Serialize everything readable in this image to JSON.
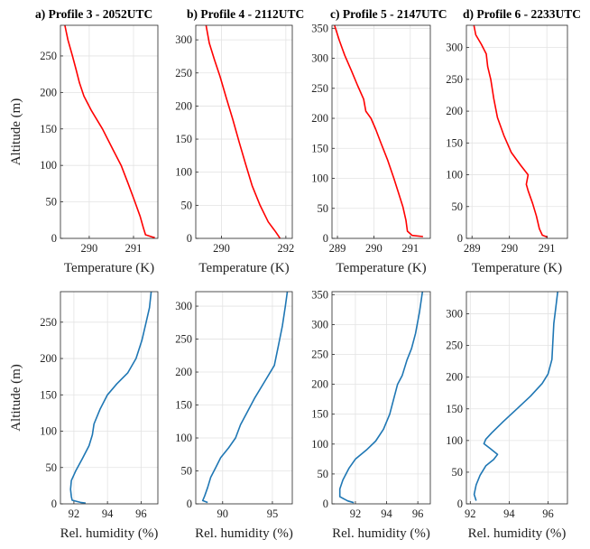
{
  "chart_data": [
    {
      "type": "line",
      "title": "a) Profile 3 - 2052UTC",
      "xlabel": "Temperature (K)",
      "ylabel": "Altitude (m)",
      "xlim": [
        289.35,
        291.55
      ],
      "ylim": [
        0,
        292
      ],
      "xticks": [
        290,
        291
      ],
      "yticks": [
        0,
        50,
        100,
        150,
        200,
        250
      ],
      "grid": true,
      "series": [
        {
          "color": "#ff0000",
          "points": [
            [
              289.45,
              292
            ],
            [
              289.52,
              272
            ],
            [
              289.62,
              250
            ],
            [
              289.7,
              232
            ],
            [
              289.78,
              213
            ],
            [
              289.88,
              195
            ],
            [
              290.05,
              175
            ],
            [
              290.3,
              150
            ],
            [
              290.55,
              120
            ],
            [
              290.72,
              100
            ],
            [
              290.88,
              75
            ],
            [
              291.02,
              52
            ],
            [
              291.15,
              30
            ],
            [
              291.22,
              15
            ],
            [
              291.27,
              5
            ],
            [
              291.42,
              2
            ],
            [
              291.48,
              1
            ]
          ]
        }
      ]
    },
    {
      "type": "line",
      "title": "b) Profile 4 - 2112UTC",
      "xlabel": "Temperature (K)",
      "ylabel": "",
      "xlim": [
        289.2,
        292.2
      ],
      "ylim": [
        0,
        322
      ],
      "xticks": [
        290,
        292
      ],
      "yticks": [
        0,
        50,
        100,
        150,
        200,
        250,
        300
      ],
      "grid": true,
      "series": [
        {
          "color": "#ff0000",
          "points": [
            [
              289.52,
              322
            ],
            [
              289.62,
              295
            ],
            [
              289.78,
              270
            ],
            [
              289.95,
              245
            ],
            [
              290.15,
              212
            ],
            [
              290.35,
              180
            ],
            [
              290.55,
              145
            ],
            [
              290.75,
              112
            ],
            [
              290.95,
              80
            ],
            [
              291.2,
              50
            ],
            [
              291.45,
              25
            ],
            [
              291.68,
              10
            ],
            [
              291.78,
              3
            ],
            [
              291.82,
              0
            ]
          ]
        }
      ]
    },
    {
      "type": "line",
      "title": "c) Profile 5 - 2147UTC",
      "xlabel": "Temperature (K)",
      "ylabel": "",
      "xlim": [
        288.85,
        291.55
      ],
      "ylim": [
        0,
        355
      ],
      "xticks": [
        289,
        290,
        291
      ],
      "yticks": [
        0,
        50,
        100,
        150,
        200,
        250,
        300,
        350
      ],
      "grid": true,
      "series": [
        {
          "color": "#ff0000",
          "points": [
            [
              288.92,
              355
            ],
            [
              289.05,
              330
            ],
            [
              289.2,
              305
            ],
            [
              289.38,
              280
            ],
            [
              289.55,
              255
            ],
            [
              289.72,
              232
            ],
            [
              289.78,
              212
            ],
            [
              289.92,
              200
            ],
            [
              290.05,
              182
            ],
            [
              290.2,
              158
            ],
            [
              290.38,
              130
            ],
            [
              290.55,
              100
            ],
            [
              290.68,
              75
            ],
            [
              290.8,
              52
            ],
            [
              290.88,
              30
            ],
            [
              290.92,
              12
            ],
            [
              291.05,
              5
            ],
            [
              291.35,
              3
            ]
          ]
        }
      ]
    },
    {
      "type": "line",
      "title": "d) Profile 6 - 2233UTC",
      "xlabel": "Temperature (K)",
      "ylabel": "",
      "xlim": [
        288.85,
        291.55
      ],
      "ylim": [
        0,
        335
      ],
      "xticks": [
        289,
        290,
        291
      ],
      "yticks": [
        0,
        50,
        100,
        150,
        200,
        250,
        300
      ],
      "grid": true,
      "series": [
        {
          "color": "#ff0000",
          "points": [
            [
              289.05,
              335
            ],
            [
              289.1,
              320
            ],
            [
              289.25,
              305
            ],
            [
              289.38,
              290
            ],
            [
              289.42,
              270
            ],
            [
              289.5,
              250
            ],
            [
              289.58,
              220
            ],
            [
              289.68,
              190
            ],
            [
              289.85,
              162
            ],
            [
              290.05,
              135
            ],
            [
              290.3,
              115
            ],
            [
              290.5,
              100
            ],
            [
              290.45,
              85
            ],
            [
              290.5,
              75
            ],
            [
              290.62,
              55
            ],
            [
              290.72,
              35
            ],
            [
              290.8,
              15
            ],
            [
              290.88,
              5
            ],
            [
              291.02,
              2
            ]
          ]
        }
      ]
    },
    {
      "type": "line",
      "title": "",
      "xlabel": "Rel. humidity (%)",
      "ylabel": "Altitude (m)",
      "xlim": [
        91.2,
        97.0
      ],
      "ylim": [
        0,
        292
      ],
      "xticks": [
        92,
        94,
        96
      ],
      "yticks": [
        0,
        50,
        100,
        150,
        200,
        250
      ],
      "grid": true,
      "series": [
        {
          "color": "#1f77b4",
          "points": [
            [
              96.6,
              292
            ],
            [
              96.5,
              270
            ],
            [
              96.3,
              250
            ],
            [
              96.05,
              225
            ],
            [
              95.7,
              200
            ],
            [
              95.2,
              180
            ],
            [
              94.55,
              165
            ],
            [
              94.0,
              150
            ],
            [
              93.55,
              130
            ],
            [
              93.2,
              110
            ],
            [
              93.1,
              95
            ],
            [
              92.9,
              80
            ],
            [
              92.5,
              62
            ],
            [
              92.1,
              45
            ],
            [
              91.85,
              32
            ],
            [
              91.8,
              20
            ],
            [
              91.85,
              10
            ],
            [
              91.9,
              5
            ],
            [
              92.4,
              2
            ],
            [
              92.7,
              1
            ]
          ]
        }
      ]
    },
    {
      "type": "line",
      "title": "",
      "xlabel": "Rel. humidity (%)",
      "ylabel": "",
      "xlim": [
        87.3,
        97.0
      ],
      "ylim": [
        0,
        322
      ],
      "xticks": [
        90,
        95
      ],
      "yticks": [
        0,
        50,
        100,
        150,
        200,
        250,
        300
      ],
      "grid": true,
      "series": [
        {
          "color": "#1f77b4",
          "points": [
            [
              96.5,
              322
            ],
            [
              96.3,
              300
            ],
            [
              96.0,
              270
            ],
            [
              95.6,
              240
            ],
            [
              95.2,
              210
            ],
            [
              94.2,
              185
            ],
            [
              93.2,
              160
            ],
            [
              92.5,
              140
            ],
            [
              91.8,
              120
            ],
            [
              91.3,
              100
            ],
            [
              90.6,
              85
            ],
            [
              89.8,
              70
            ],
            [
              89.3,
              55
            ],
            [
              88.8,
              40
            ],
            [
              88.5,
              25
            ],
            [
              88.2,
              12
            ],
            [
              88.0,
              5
            ],
            [
              88.5,
              2
            ]
          ]
        }
      ]
    },
    {
      "type": "line",
      "title": "",
      "xlabel": "Rel. humidity (%)",
      "ylabel": "",
      "xlim": [
        90.5,
        96.8
      ],
      "ylim": [
        0,
        355
      ],
      "xticks": [
        92,
        94,
        96
      ],
      "yticks": [
        0,
        50,
        100,
        150,
        200,
        250,
        300,
        350
      ],
      "grid": true,
      "series": [
        {
          "color": "#1f77b4",
          "points": [
            [
              96.3,
              355
            ],
            [
              96.1,
              320
            ],
            [
              95.85,
              285
            ],
            [
              95.6,
              260
            ],
            [
              95.3,
              240
            ],
            [
              95.0,
              215
            ],
            [
              94.7,
              200
            ],
            [
              94.5,
              180
            ],
            [
              94.2,
              150
            ],
            [
              93.8,
              125
            ],
            [
              93.3,
              105
            ],
            [
              92.7,
              90
            ],
            [
              92.0,
              75
            ],
            [
              91.6,
              60
            ],
            [
              91.2,
              40
            ],
            [
              91.0,
              25
            ],
            [
              91.0,
              12
            ],
            [
              91.5,
              5
            ],
            [
              91.9,
              2
            ]
          ]
        }
      ]
    },
    {
      "type": "line",
      "title": "",
      "xlabel": "Rel. humidity (%)",
      "ylabel": "",
      "xlim": [
        91.8,
        97.0
      ],
      "ylim": [
        0,
        335
      ],
      "xticks": [
        92,
        94,
        96
      ],
      "yticks": [
        0,
        50,
        100,
        150,
        200,
        250,
        300
      ],
      "grid": true,
      "series": [
        {
          "color": "#1f77b4",
          "points": [
            [
              96.5,
              335
            ],
            [
              96.4,
              310
            ],
            [
              96.3,
              285
            ],
            [
              96.25,
              255
            ],
            [
              96.2,
              228
            ],
            [
              96.0,
              205
            ],
            [
              95.7,
              190
            ],
            [
              95.1,
              170
            ],
            [
              94.4,
              150
            ],
            [
              93.7,
              130
            ],
            [
              93.1,
              112
            ],
            [
              92.8,
              102
            ],
            [
              92.7,
              95
            ],
            [
              93.0,
              88
            ],
            [
              93.4,
              78
            ],
            [
              93.2,
              70
            ],
            [
              92.8,
              60
            ],
            [
              92.5,
              45
            ],
            [
              92.3,
              30
            ],
            [
              92.2,
              15
            ],
            [
              92.3,
              5
            ]
          ]
        }
      ]
    }
  ]
}
